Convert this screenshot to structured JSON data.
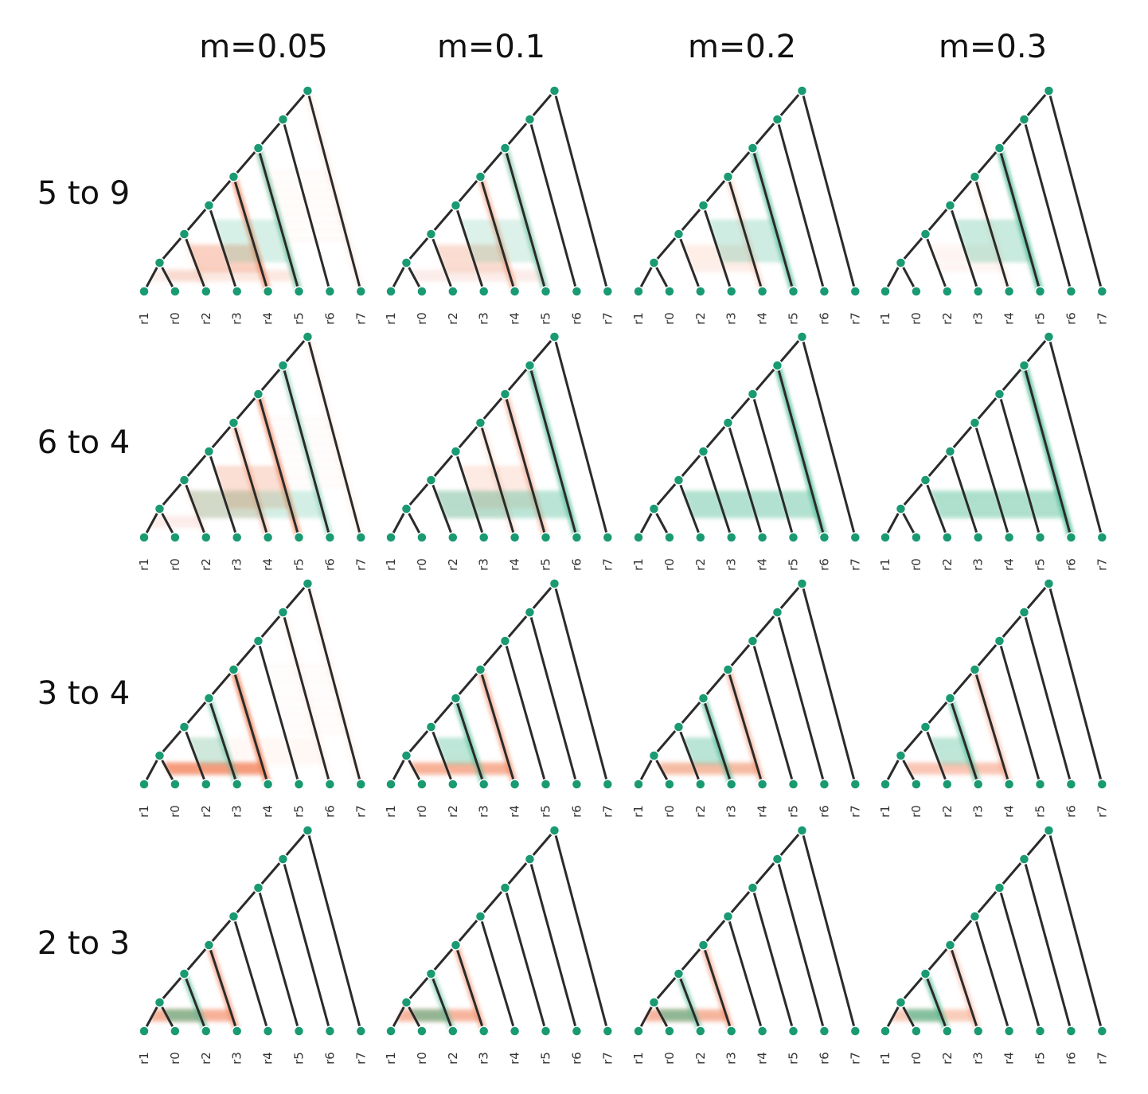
{
  "column_titles": [
    "m=0.05",
    "m=0.1",
    "m=0.2",
    "m=0.3"
  ],
  "row_titles": [
    "5 to 9",
    "6 to 4",
    "3 to 4",
    "2 to 3"
  ],
  "leaf_labels": [
    "r1",
    "r0",
    "r2",
    "r3",
    "r4",
    "r5",
    "r6",
    "r7"
  ],
  "colors": {
    "branch": "#2b2b2b",
    "node": "#1a9a72",
    "green_band": "#45b88f",
    "orange_band": "#f07a4e"
  },
  "panels": [
    [
      {
        "green": [
          [
            3,
            5,
            0.6
          ]
        ],
        "orange": [
          [
            2,
            4,
            0.7
          ],
          [
            5,
            7,
            0.12
          ],
          [
            1,
            5,
            0.12
          ],
          [
            0,
            2,
            0.1
          ]
        ]
      },
      {
        "green": [
          [
            3,
            5,
            0.55
          ]
        ],
        "orange": [
          [
            2,
            4,
            0.5
          ],
          [
            1,
            5,
            0.1
          ]
        ]
      },
      {
        "green": [
          [
            3,
            5,
            0.75
          ]
        ],
        "orange": [
          [
            2,
            4,
            0.25
          ]
        ]
      },
      {
        "green": [
          [
            3,
            5,
            0.85
          ]
        ],
        "orange": [
          [
            2,
            4,
            0.12
          ]
        ]
      }
    ],
    [
      {
        "green": [
          [
            2,
            6,
            0.45
          ]
        ],
        "orange": [
          [
            3,
            5,
            0.7
          ],
          [
            2,
            4,
            0.4
          ],
          [
            5,
            7,
            0.1
          ],
          [
            0,
            2,
            0.1
          ]
        ]
      },
      {
        "green": [
          [
            2,
            6,
            0.75
          ]
        ],
        "orange": [
          [
            3,
            5,
            0.45
          ],
          [
            2,
            4,
            0.2
          ]
        ]
      },
      {
        "green": [
          [
            2,
            6,
            0.85
          ]
        ],
        "orange": []
      },
      {
        "green": [
          [
            2,
            6,
            0.9
          ]
        ],
        "orange": []
      }
    ],
    [
      {
        "green": [
          [
            2,
            3,
            0.5
          ]
        ],
        "orange": [
          [
            1,
            4,
            0.85
          ],
          [
            5,
            7,
            0.1
          ],
          [
            2,
            6,
            0.08
          ]
        ]
      },
      {
        "green": [
          [
            2,
            3,
            0.7
          ]
        ],
        "orange": [
          [
            1,
            4,
            0.6
          ]
        ]
      },
      {
        "green": [
          [
            2,
            3,
            0.75
          ]
        ],
        "orange": [
          [
            1,
            4,
            0.5
          ]
        ]
      },
      {
        "green": [
          [
            2,
            3,
            0.7
          ]
        ],
        "orange": [
          [
            1,
            4,
            0.4
          ]
        ]
      }
    ],
    [
      {
        "green": [
          [
            1,
            2,
            0.6
          ]
        ],
        "orange": [
          [
            0,
            3,
            0.6
          ]
        ]
      },
      {
        "green": [
          [
            1,
            2,
            0.55
          ]
        ],
        "orange": [
          [
            0,
            3,
            0.55
          ]
        ]
      },
      {
        "green": [
          [
            1,
            2,
            0.6
          ]
        ],
        "orange": [
          [
            0,
            3,
            0.55
          ]
        ]
      },
      {
        "green": [
          [
            1,
            2,
            0.7
          ]
        ],
        "orange": [
          [
            0,
            3,
            0.35
          ]
        ]
      }
    ]
  ]
}
